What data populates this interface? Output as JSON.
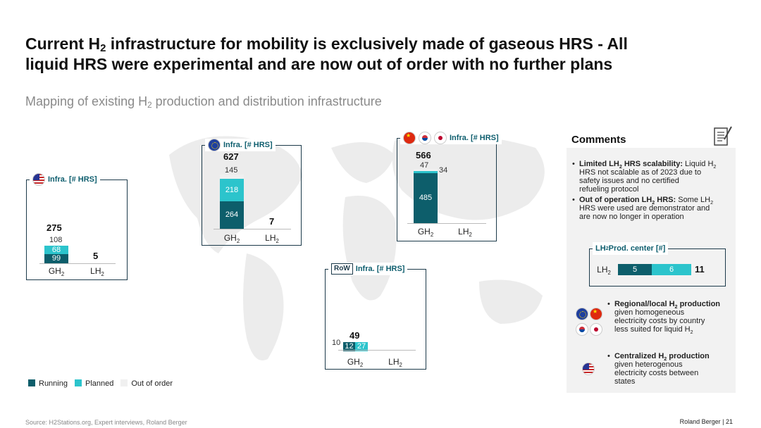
{
  "title_line1": "Current H",
  "title_sub": "2",
  "title_rest1": " infrastructure for mobility is exclusively made of gaseous HRS - All",
  "title_line2": "liquid HRS were experimental and are now out of order with no further plans",
  "subtitle_pre": "Mapping of existing H",
  "subtitle_sub": "2",
  "subtitle_post": " production and distribution infrastructure",
  "legend": {
    "running": "Running",
    "planned": "Planned",
    "out_of_order": "Out of order"
  },
  "colors": {
    "running": "#0d5e6b",
    "planned": "#2cc4cc",
    "out_of_order": "#f0f0f0",
    "frame": "#1c3a4a"
  },
  "chart_data": [
    {
      "type": "bar",
      "stacked": true,
      "region": "USA",
      "flag": "us-flag-icon",
      "header": "Infra. [# HRS]",
      "categories": [
        "GH2",
        "LH2"
      ],
      "series": [
        {
          "name": "Running",
          "values": [
            99,
            0
          ]
        },
        {
          "name": "Planned",
          "values": [
            68,
            0
          ]
        },
        {
          "name": "Out of order",
          "values": [
            108,
            5
          ]
        }
      ],
      "totals": [
        275,
        5
      ]
    },
    {
      "type": "bar",
      "stacked": true,
      "region": "Europe",
      "flag": "eu-flag-icon",
      "header": "Infra. [# HRS]",
      "categories": [
        "GH2",
        "LH2"
      ],
      "series": [
        {
          "name": "Running",
          "values": [
            264,
            0
          ]
        },
        {
          "name": "Planned",
          "values": [
            218,
            0
          ]
        },
        {
          "name": "Out of order",
          "values": [
            145,
            7
          ]
        }
      ],
      "totals": [
        627,
        7
      ]
    },
    {
      "type": "bar",
      "stacked": true,
      "region": "China / Japan / Korea",
      "flag": "asia-flags-icon",
      "header": "Infra. [# HRS]",
      "categories": [
        "GH2",
        "LH2"
      ],
      "series": [
        {
          "name": "Running",
          "values": [
            485,
            0
          ]
        },
        {
          "name": "Planned",
          "values": [
            47,
            0
          ]
        },
        {
          "name": "Out of order",
          "values": [
            34,
            0
          ]
        }
      ],
      "totals": [
        566,
        null
      ]
    },
    {
      "type": "bar",
      "stacked": true,
      "region": "RoW",
      "flag": "row-tag",
      "header": "Infra. [# HRS]",
      "categories": [
        "GH2",
        "LH2"
      ],
      "series": [
        {
          "name": "Running",
          "values": [
            12,
            0
          ]
        },
        {
          "name": "Planned",
          "values": [
            27,
            0
          ]
        },
        {
          "name": "Out of order",
          "values": [
            10,
            0
          ]
        }
      ],
      "totals": [
        49,
        null
      ]
    },
    {
      "type": "bar",
      "stacked": true,
      "orientation": "horizontal",
      "header": "Prod. center  [#]",
      "categories": [
        "LH2"
      ],
      "series": [
        {
          "name": "Running",
          "values": [
            5
          ]
        },
        {
          "name": "Planned",
          "values": [
            6
          ]
        }
      ],
      "totals": [
        11
      ]
    }
  ],
  "row_tag": "RoW",
  "cat_gh": "GH",
  "cat_lh": "LH",
  "cat_sub": "2",
  "comments": {
    "title": "Comments",
    "b1_bold": "Limited LH",
    "b1_bold_sub": "2",
    "b1_bold_end": " HRS scalability:",
    "b1_text": " Liquid H",
    "b1_text_sub": "2",
    "b1_text2": "HRS not scalable as of 2023 due to",
    "b1_text3": "safety issues and no certified",
    "b1_text4": "refueling protocol",
    "b2_bold": "Out of operation LH",
    "b2_bold_sub": "2",
    "b2_bold_end": " HRS:",
    "b2_text": " Some LH",
    "b2_text_sub": "2",
    "b2_text2": "HRS were used are demonstrator and",
    "b2_text3": "are now no longer in operation",
    "prod_header_pre": "LH",
    "prod_header_sub": "2",
    "prod_header_post": " Prod. center  [#]",
    "b3_bold": "Regional/local H",
    "b3_bold_sub": "2",
    "b3_bold_end": " production",
    "b3_l2": "given homogeneous",
    "b3_l3": "electricity costs by country",
    "b3_l4": "less suited for liquid H",
    "b3_l4_sub": "2",
    "b4_bold": "Centralized H",
    "b4_bold_sub": "2",
    "b4_bold_end": " production",
    "b4_l2": "given heterogenous",
    "b4_l3": "electricity costs between",
    "b4_l4": "states"
  },
  "source": "Source: H2Stations.org, Expert interviews, Roland Berger",
  "footer": "Roland Berger  |  21"
}
